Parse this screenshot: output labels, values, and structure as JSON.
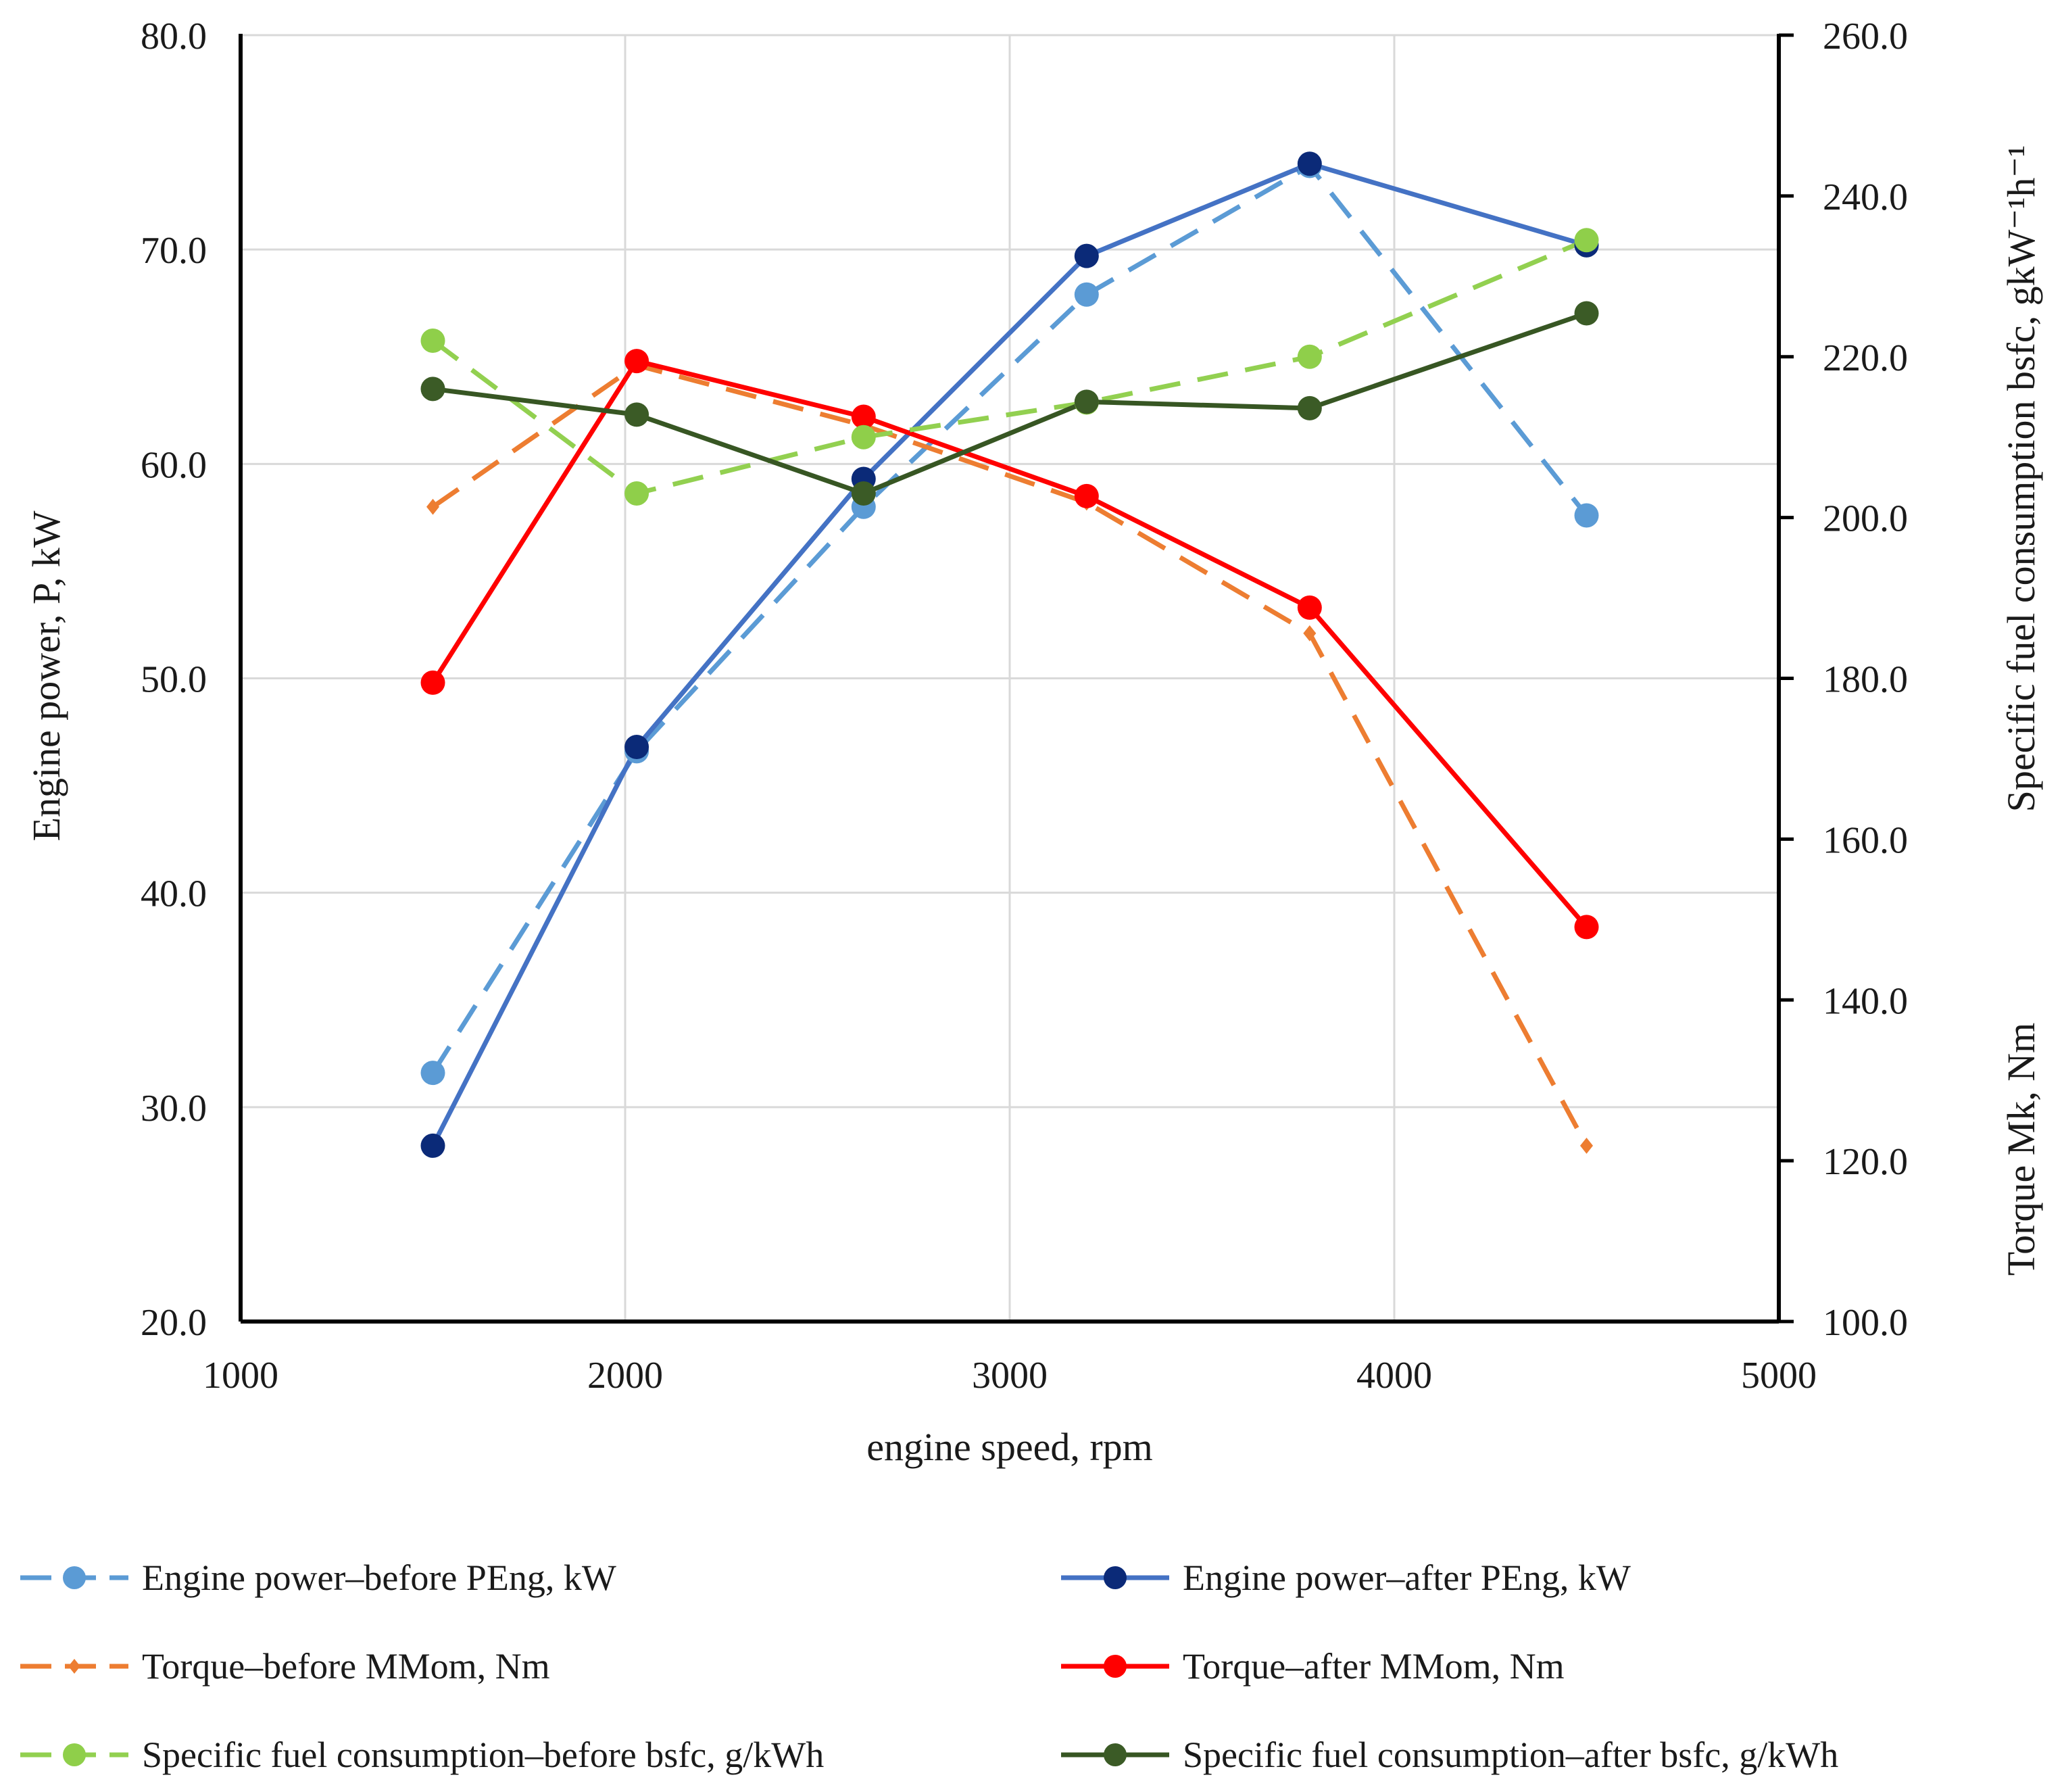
{
  "chart_data": {
    "type": "line",
    "title": "",
    "xlabel": "engine speed, rpm",
    "ylabel_left": "Engine power, P, kW",
    "ylabel_right": "Specific fuel  consumption bsfc, gkW⁻¹h⁻¹",
    "ylabel_right_2": "Torque Mk, Nm",
    "xlim": [
      1000,
      5000
    ],
    "ylim_left": [
      20,
      80
    ],
    "ylim_right": [
      100,
      260
    ],
    "x_ticks": [
      "1000",
      "2000",
      "3000",
      "4000",
      "5000"
    ],
    "y_left_ticks": [
      "20.0",
      "30.0",
      "40.0",
      "50.0",
      "60.0",
      "70.0",
      "80.0"
    ],
    "y_right_ticks": [
      "100.0",
      "120.0",
      "140.0",
      "160.0",
      "180.0",
      "200.0",
      "220.0",
      "240.0",
      "260.0"
    ],
    "grid": true,
    "legend_position": "bottom",
    "series": [
      {
        "name": "Engine power–before  PEng, kW",
        "axis": "left",
        "color": "#5b9bd5",
        "dashed": true,
        "marker": "circle",
        "x": [
          1500,
          2030,
          2620,
          3200,
          3780,
          4500
        ],
        "y": [
          31.6,
          46.6,
          58.0,
          67.9,
          73.9,
          57.6
        ]
      },
      {
        "name": "Engine power–after  PEng, kW",
        "axis": "left",
        "color": "#4472c4",
        "marker_color": "#0b2a78",
        "dashed": false,
        "marker": "circle",
        "x": [
          1500,
          2030,
          2620,
          3200,
          3780,
          4500
        ],
        "y": [
          28.2,
          46.8,
          59.3,
          69.7,
          74.0,
          70.2
        ]
      },
      {
        "name": "Torque–before MMom, Nm",
        "axis": "left",
        "color": "#ed7d31",
        "dashed": true,
        "marker": "diamond",
        "x": [
          1500,
          2030,
          2620,
          3200,
          3780,
          4500
        ],
        "y": [
          58.0,
          64.6,
          61.8,
          58.2,
          52.1,
          28.2
        ]
      },
      {
        "name": "Torque–after MMom, Nm",
        "axis": "left",
        "color": "#ff0000",
        "dashed": false,
        "marker": "circle",
        "x": [
          1500,
          2030,
          2620,
          3200,
          3780,
          4500
        ],
        "y": [
          49.8,
          64.8,
          62.2,
          58.5,
          53.3,
          38.4
        ]
      },
      {
        "name": "Specific fuel consumption–before bsfc, g/kWh",
        "axis": "right",
        "color": "#92d050",
        "marker_color": "#8fcf4a",
        "dashed": true,
        "marker": "circle",
        "x": [
          1500,
          2030,
          2620,
          3200,
          3780,
          4500
        ],
        "y": [
          222.0,
          203.0,
          210.0,
          214.3,
          220.0,
          234.5
        ]
      },
      {
        "name": "Specific fuel consumption–after bsfc, g/kWh",
        "axis": "right",
        "color": "#375623",
        "marker_color": "#3b5b26",
        "dashed": false,
        "marker": "circle",
        "x": [
          1500,
          2030,
          2620,
          3200,
          3780,
          4500
        ],
        "y": [
          216.0,
          212.8,
          203.0,
          214.4,
          213.6,
          225.4
        ]
      }
    ]
  }
}
